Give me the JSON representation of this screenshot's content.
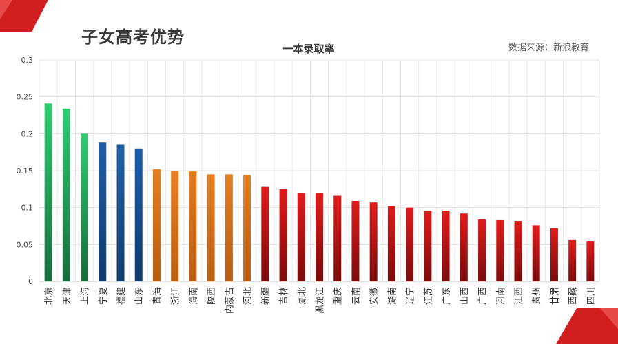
{
  "slide": {
    "title": "子女高考优势",
    "source": "数据来源：新浪教育"
  },
  "colors": {
    "green": "#2ecc71",
    "blue": "#1f5fa8",
    "orange": "#e67e22",
    "red": "#e11b1b",
    "accent": "#cc1a1a"
  },
  "chart_data": {
    "type": "bar",
    "title": "一本录取率",
    "xlabel": "",
    "ylabel": "",
    "ylim": [
      0,
      0.3
    ],
    "yticks": [
      "0",
      "0.05",
      "0.1",
      "0.15",
      "0.2",
      "0.25",
      "0.3"
    ],
    "grid": true,
    "legend": "none",
    "categories": [
      "北京",
      "天津",
      "上海",
      "宁夏",
      "福建",
      "山东",
      "青海",
      "浙江",
      "海南",
      "陕西",
      "内蒙古",
      "河北",
      "新疆",
      "吉林",
      "湖北",
      "黑龙江",
      "重庆",
      "云南",
      "安徽",
      "湖南",
      "辽宁",
      "江苏",
      "广东",
      "山西",
      "广西",
      "河南",
      "江西",
      "贵州",
      "甘肃",
      "西藏",
      "四川"
    ],
    "values": [
      0.241,
      0.234,
      0.2,
      0.188,
      0.185,
      0.18,
      0.152,
      0.15,
      0.149,
      0.145,
      0.145,
      0.144,
      0.128,
      0.125,
      0.12,
      0.12,
      0.116,
      0.109,
      0.107,
      0.102,
      0.1,
      0.096,
      0.096,
      0.092,
      0.084,
      0.083,
      0.082,
      0.076,
      0.072,
      0.056,
      0.054
    ],
    "bar_colors": [
      "green",
      "green",
      "green",
      "blue",
      "blue",
      "blue",
      "orange",
      "orange",
      "orange",
      "orange",
      "orange",
      "orange",
      "red",
      "red",
      "red",
      "red",
      "red",
      "red",
      "red",
      "red",
      "red",
      "red",
      "red",
      "red",
      "red",
      "red",
      "red",
      "red",
      "red",
      "red",
      "red"
    ]
  }
}
